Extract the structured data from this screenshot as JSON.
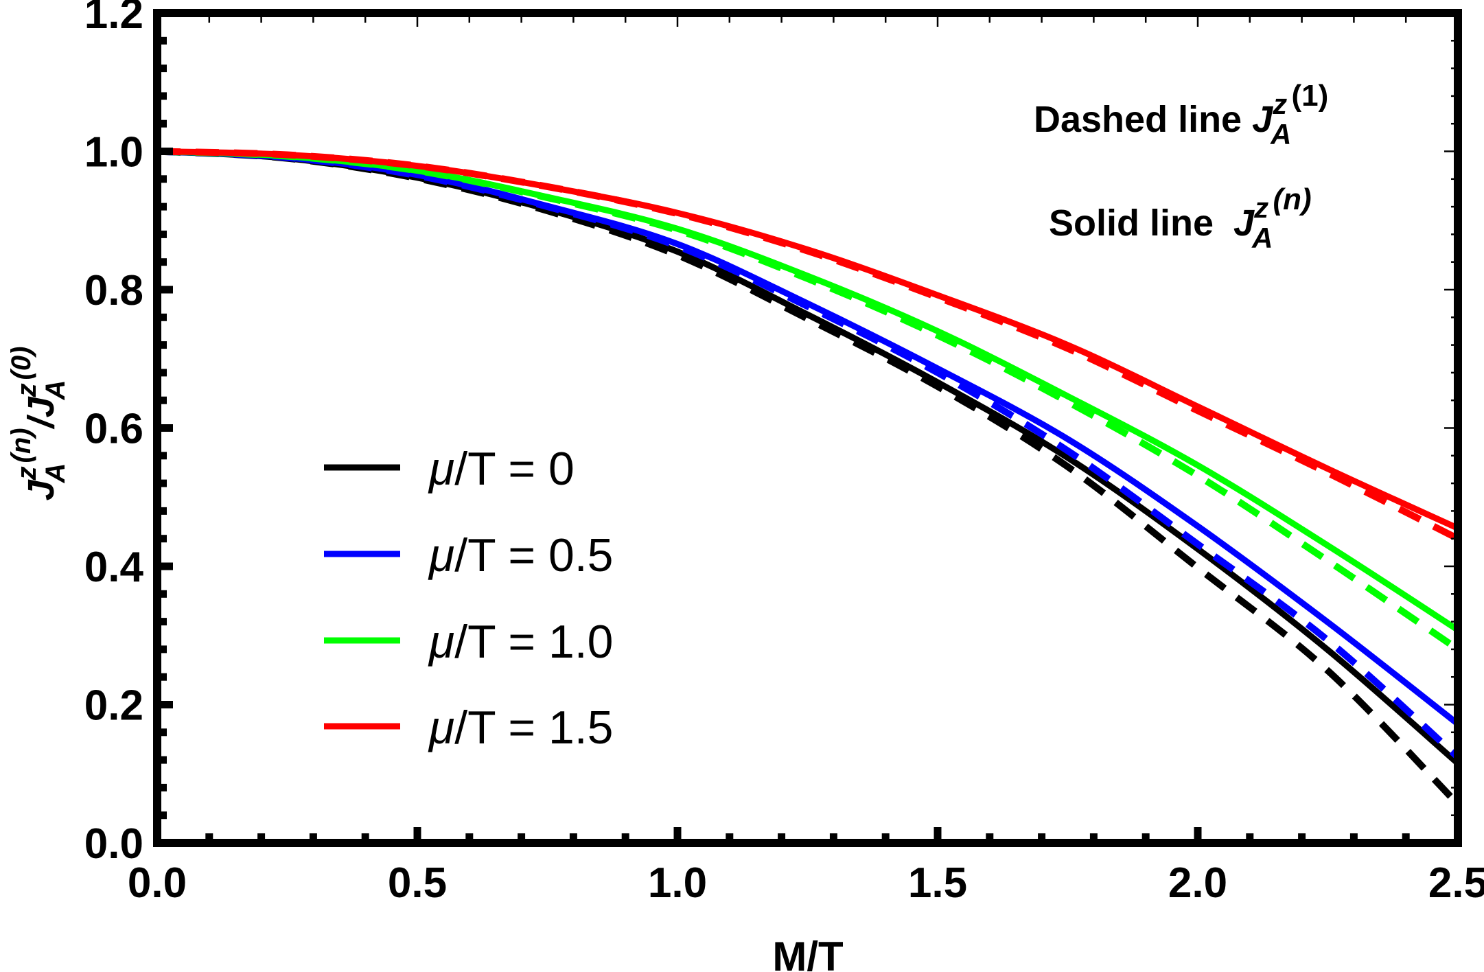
{
  "chart_data": {
    "type": "line",
    "title": "",
    "xlabel": "M/T",
    "ylabel": {
      "numerator": {
        "base": "J",
        "sup": "z",
        "sub": "A",
        "index": "(n)"
      },
      "separator": "/",
      "denominator": {
        "base": "J",
        "sup": "z",
        "sub": "A",
        "index": "(0)"
      }
    },
    "xlim": [
      0,
      2.5
    ],
    "ylim": [
      0,
      1.2
    ],
    "xticks": [
      0.0,
      0.5,
      1.0,
      1.5,
      2.0,
      2.5
    ],
    "xtick_labels": [
      "0.0",
      "0.5",
      "1.0",
      "1.5",
      "2.0",
      "2.5"
    ],
    "yticks": [
      0.0,
      0.2,
      0.4,
      0.6,
      0.8,
      1.0,
      1.2
    ],
    "ytick_labels": [
      "0.0",
      "0.2",
      "0.4",
      "0.6",
      "0.8",
      "1.0",
      "1.2"
    ],
    "grid": false,
    "legend_position": "lower-left",
    "annotations": [
      {
        "text": "Dashed line",
        "symbol": {
          "base": "J",
          "sup": "z",
          "sub": "A",
          "index": "(1)"
        }
      },
      {
        "text": "Solid line",
        "symbol": {
          "base": "J",
          "sup": "z",
          "sub": "A",
          "index": "(n)"
        }
      }
    ],
    "x": [
      0.0,
      0.25,
      0.5,
      0.75,
      1.0,
      1.25,
      1.5,
      1.75,
      2.0,
      2.25,
      2.5
    ],
    "series": [
      {
        "name": "μ/T = 0",
        "legend_mu": "μ",
        "legend_rest": "/T = 0",
        "style": "solid",
        "color": "#000000",
        "values": [
          1.0,
          0.99,
          0.962,
          0.916,
          0.855,
          0.764,
          0.666,
          0.557,
          0.425,
          0.279,
          0.115
        ]
      },
      {
        "name": "μ/T = 0 (J(1))",
        "style": "dashed",
        "color": "#000000",
        "values": [
          1.0,
          0.99,
          0.961,
          0.914,
          0.85,
          0.758,
          0.66,
          0.544,
          0.398,
          0.249,
          0.056
        ]
      },
      {
        "name": "μ/T = 0.5",
        "legend_mu": "μ",
        "legend_rest": "/T = 0.5",
        "style": "solid",
        "color": "#0000ff",
        "values": [
          1.0,
          0.991,
          0.966,
          0.921,
          0.866,
          0.78,
          0.686,
          0.584,
          0.458,
          0.319,
          0.172
        ]
      },
      {
        "name": "μ/T = 0.5 (J(1))",
        "style": "dashed",
        "color": "#0000ff",
        "values": [
          1.0,
          0.991,
          0.965,
          0.92,
          0.863,
          0.776,
          0.68,
          0.567,
          0.432,
          0.293,
          0.124
        ]
      },
      {
        "name": "μ/T = 1.0",
        "legend_mu": "μ",
        "legend_rest": "/T = 1.0",
        "style": "solid",
        "color": "#00ff00",
        "values": [
          1.0,
          0.993,
          0.972,
          0.934,
          0.888,
          0.82,
          0.74,
          0.646,
          0.546,
          0.43,
          0.308
        ]
      },
      {
        "name": "μ/T = 1.0 (J(1))",
        "style": "dashed",
        "color": "#00ff00",
        "values": [
          1.0,
          0.993,
          0.972,
          0.933,
          0.886,
          0.816,
          0.734,
          0.638,
          0.531,
          0.408,
          0.28
        ]
      },
      {
        "name": "μ/T = 1.5",
        "legend_mu": "μ",
        "legend_rest": "/T = 1.5",
        "style": "solid",
        "color": "#ff0000",
        "values": [
          1.0,
          0.995,
          0.979,
          0.949,
          0.911,
          0.858,
          0.792,
          0.72,
          0.631,
          0.541,
          0.455
        ]
      },
      {
        "name": "μ/T = 1.5 (J(1))",
        "style": "dashed",
        "color": "#ff0000",
        "values": [
          1.0,
          0.995,
          0.979,
          0.949,
          0.91,
          0.856,
          0.789,
          0.715,
          0.625,
          0.535,
          0.44
        ]
      }
    ]
  }
}
